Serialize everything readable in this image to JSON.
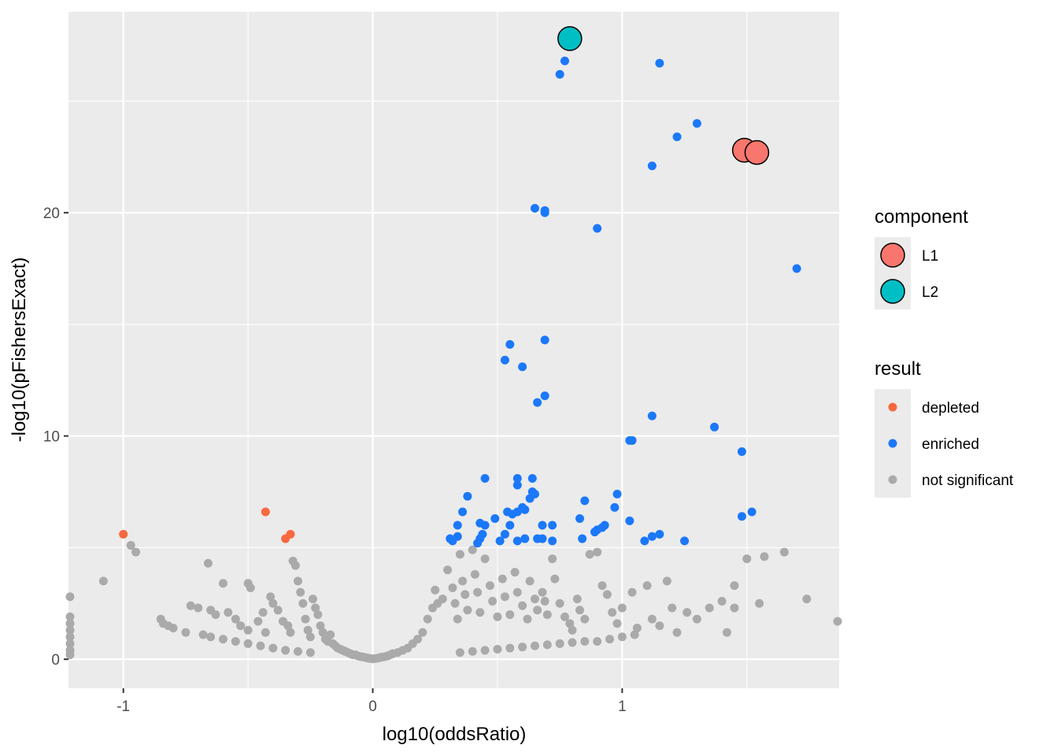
{
  "chart_data": {
    "type": "scatter",
    "xlabel": "log10(oddsRatio)",
    "ylabel": "-log10(pFishersExact)",
    "xlim": [
      -1.22,
      1.87
    ],
    "ylim": [
      -1.3,
      29.0
    ],
    "x_ticks": [
      -1,
      0,
      1
    ],
    "x_tick_labels": [
      "-1",
      "0",
      "1"
    ],
    "y_ticks": [
      0,
      10,
      20
    ],
    "y_tick_labels": [
      "0",
      "10",
      "20"
    ],
    "grid": true,
    "legend_position": "right",
    "colors": {
      "panel": "#ebebeb",
      "grid": "#ffffff",
      "depleted": "#f8683f",
      "enriched": "#1b78f9",
      "not_significant": "#aaaaaa",
      "L1": "#f8766d",
      "L2": "#00bfc4"
    },
    "legends": [
      {
        "title": "component",
        "entries": [
          {
            "label": "L1",
            "color": "#f8766d",
            "shape": "large-circle"
          },
          {
            "label": "L2",
            "color": "#00bfc4",
            "shape": "large-circle"
          }
        ]
      },
      {
        "title": "result",
        "entries": [
          {
            "label": "depleted",
            "color": "#f8683f",
            "shape": "small-circle"
          },
          {
            "label": "enriched",
            "color": "#1b78f9",
            "shape": "small-circle"
          },
          {
            "label": "not significant",
            "color": "#aaaaaa",
            "shape": "small-circle"
          }
        ]
      }
    ],
    "series": [
      {
        "name": "not significant",
        "color": "#aaaaaa",
        "points": [
          [
            -1.22,
            2.8
          ],
          [
            -1.22,
            1.9
          ],
          [
            -1.22,
            1.6
          ],
          [
            -1.22,
            1.3
          ],
          [
            -1.22,
            1.0
          ],
          [
            -1.22,
            0.7
          ],
          [
            -1.22,
            0.4
          ],
          [
            -1.22,
            0.2
          ],
          [
            -1.08,
            3.5
          ],
          [
            -0.97,
            5.1
          ],
          [
            -0.95,
            4.8
          ],
          [
            -0.85,
            1.8
          ],
          [
            -0.84,
            1.6
          ],
          [
            -0.82,
            1.5
          ],
          [
            -0.8,
            1.4
          ],
          [
            -0.75,
            1.2
          ],
          [
            -0.73,
            2.4
          ],
          [
            -0.7,
            2.3
          ],
          [
            -0.68,
            1.1
          ],
          [
            -0.66,
            4.3
          ],
          [
            -0.65,
            2.2
          ],
          [
            -0.63,
            2.0
          ],
          [
            -0.6,
            3.4
          ],
          [
            -0.58,
            2.1
          ],
          [
            -0.55,
            1.8
          ],
          [
            -0.53,
            1.5
          ],
          [
            -0.5,
            1.3
          ],
          [
            -0.5,
            3.4
          ],
          [
            -0.49,
            3.2
          ],
          [
            -0.46,
            1.7
          ],
          [
            -0.44,
            2.1
          ],
          [
            -0.43,
            1.2
          ],
          [
            -0.41,
            2.8
          ],
          [
            -0.4,
            2.5
          ],
          [
            -0.38,
            2.2
          ],
          [
            -0.36,
            1.7
          ],
          [
            -0.34,
            1.5
          ],
          [
            -0.33,
            1.2
          ],
          [
            -0.32,
            4.4
          ],
          [
            -0.31,
            4.2
          ],
          [
            -0.3,
            3.5
          ],
          [
            -0.29,
            3.0
          ],
          [
            -0.28,
            2.5
          ],
          [
            -0.27,
            1.8
          ],
          [
            -0.26,
            1.3
          ],
          [
            -0.25,
            1.0
          ],
          [
            -0.24,
            2.7
          ],
          [
            -0.23,
            2.3
          ],
          [
            -0.22,
            2.0
          ],
          [
            -0.21,
            1.5
          ],
          [
            -0.2,
            1.2
          ],
          [
            -0.19,
            0.9
          ],
          [
            -0.18,
            0.8
          ],
          [
            -0.17,
            1.1
          ],
          [
            -0.16,
            0.7
          ],
          [
            -0.15,
            0.6
          ],
          [
            -0.14,
            0.5
          ],
          [
            -0.13,
            0.45
          ],
          [
            -0.12,
            0.4
          ],
          [
            -0.11,
            0.35
          ],
          [
            -0.1,
            0.3
          ],
          [
            -0.09,
            0.25
          ],
          [
            -0.08,
            0.2
          ],
          [
            -0.07,
            0.2
          ],
          [
            -0.06,
            0.15
          ],
          [
            -0.05,
            0.12
          ],
          [
            -0.04,
            0.1
          ],
          [
            -0.03,
            0.08
          ],
          [
            -0.02,
            0.05
          ],
          [
            -0.01,
            0.03
          ],
          [
            0.0,
            0.02
          ],
          [
            0.01,
            0.03
          ],
          [
            0.02,
            0.05
          ],
          [
            0.03,
            0.08
          ],
          [
            0.04,
            0.1
          ],
          [
            0.05,
            0.12
          ],
          [
            0.06,
            0.15
          ],
          [
            0.07,
            0.2
          ],
          [
            0.08,
            0.25
          ],
          [
            0.1,
            0.3
          ],
          [
            0.12,
            0.4
          ],
          [
            0.14,
            0.5
          ],
          [
            0.16,
            0.7
          ],
          [
            0.18,
            0.9
          ],
          [
            0.2,
            1.2
          ],
          [
            0.22,
            1.8
          ],
          [
            0.24,
            2.3
          ],
          [
            0.25,
            3.1
          ],
          [
            0.26,
            2.5
          ],
          [
            0.28,
            2.7
          ],
          [
            0.3,
            4.0
          ],
          [
            0.32,
            3.2
          ],
          [
            0.33,
            2.5
          ],
          [
            0.34,
            1.8
          ],
          [
            0.35,
            4.7
          ],
          [
            0.36,
            3.5
          ],
          [
            0.37,
            2.9
          ],
          [
            0.38,
            2.2
          ],
          [
            0.4,
            4.9
          ],
          [
            0.41,
            3.8
          ],
          [
            0.42,
            3.0
          ],
          [
            0.43,
            2.1
          ],
          [
            0.45,
            4.5
          ],
          [
            0.47,
            3.3
          ],
          [
            0.48,
            2.6
          ],
          [
            0.5,
            1.9
          ],
          [
            0.52,
            3.6
          ],
          [
            0.53,
            2.8
          ],
          [
            0.55,
            2.0
          ],
          [
            0.57,
            3.9
          ],
          [
            0.58,
            3.0
          ],
          [
            0.6,
            2.4
          ],
          [
            0.62,
            1.8
          ],
          [
            0.63,
            3.5
          ],
          [
            0.65,
            2.7
          ],
          [
            0.66,
            2.2
          ],
          [
            0.68,
            3.0
          ],
          [
            0.69,
            2.6
          ],
          [
            0.7,
            2.0
          ],
          [
            0.72,
            4.5
          ],
          [
            0.73,
            3.6
          ],
          [
            0.75,
            2.5
          ],
          [
            0.77,
            1.9
          ],
          [
            0.79,
            1.6
          ],
          [
            0.8,
            1.3
          ],
          [
            0.82,
            2.7
          ],
          [
            0.83,
            2.2
          ],
          [
            0.85,
            1.8
          ],
          [
            0.87,
            4.7
          ],
          [
            0.9,
            4.8
          ],
          [
            0.92,
            3.3
          ],
          [
            0.94,
            2.9
          ],
          [
            0.96,
            2.1
          ],
          [
            0.98,
            1.6
          ],
          [
            1.0,
            2.3
          ],
          [
            1.04,
            3.0
          ],
          [
            1.06,
            1.4
          ],
          [
            1.1,
            3.3
          ],
          [
            1.12,
            1.8
          ],
          [
            1.15,
            1.5
          ],
          [
            1.18,
            3.5
          ],
          [
            1.2,
            2.3
          ],
          [
            1.22,
            1.2
          ],
          [
            1.26,
            2.1
          ],
          [
            1.3,
            1.8
          ],
          [
            1.35,
            2.3
          ],
          [
            1.4,
            2.6
          ],
          [
            1.42,
            1.2
          ],
          [
            1.45,
            3.3
          ],
          [
            1.45,
            2.3
          ],
          [
            1.5,
            4.5
          ],
          [
            1.55,
            2.5
          ],
          [
            1.57,
            4.6
          ],
          [
            1.65,
            4.8
          ],
          [
            1.74,
            2.7
          ],
          [
            1.87,
            1.7
          ],
          [
            0.9,
            0.8
          ],
          [
            0.85,
            0.8
          ],
          [
            0.8,
            0.75
          ],
          [
            0.75,
            0.7
          ],
          [
            0.7,
            0.65
          ],
          [
            0.65,
            0.6
          ],
          [
            0.6,
            0.55
          ],
          [
            0.55,
            0.5
          ],
          [
            0.5,
            0.45
          ],
          [
            0.45,
            0.4
          ],
          [
            0.4,
            0.35
          ],
          [
            0.35,
            0.3
          ],
          [
            0.95,
            0.9
          ],
          [
            1.0,
            1.0
          ],
          [
            1.05,
            1.1
          ],
          [
            -0.35,
            0.4
          ],
          [
            -0.3,
            0.35
          ],
          [
            -0.25,
            0.3
          ],
          [
            -0.4,
            0.5
          ],
          [
            -0.45,
            0.6
          ],
          [
            -0.5,
            0.7
          ],
          [
            -0.55,
            0.8
          ],
          [
            -0.6,
            0.9
          ],
          [
            -0.65,
            1.0
          ]
        ]
      },
      {
        "name": "depleted",
        "color": "#f8683f",
        "points": [
          [
            -1.0,
            5.6
          ],
          [
            -0.43,
            6.6
          ],
          [
            -0.35,
            5.4
          ],
          [
            -0.33,
            5.6
          ]
        ]
      },
      {
        "name": "enriched",
        "color": "#1b78f9",
        "points": [
          [
            0.77,
            26.8
          ],
          [
            0.75,
            26.2
          ],
          [
            1.15,
            26.7
          ],
          [
            1.3,
            24.0
          ],
          [
            1.22,
            23.4
          ],
          [
            1.12,
            22.1
          ],
          [
            0.65,
            20.2
          ],
          [
            0.69,
            20.1
          ],
          [
            0.69,
            20.0
          ],
          [
            0.9,
            19.3
          ],
          [
            1.7,
            17.5
          ],
          [
            0.69,
            14.3
          ],
          [
            0.55,
            14.1
          ],
          [
            0.53,
            13.4
          ],
          [
            0.6,
            13.1
          ],
          [
            0.69,
            11.8
          ],
          [
            0.66,
            11.5
          ],
          [
            1.12,
            10.9
          ],
          [
            1.37,
            10.4
          ],
          [
            1.03,
            9.8
          ],
          [
            1.04,
            9.8
          ],
          [
            1.48,
            9.3
          ],
          [
            0.45,
            8.1
          ],
          [
            0.58,
            8.1
          ],
          [
            0.64,
            8.1
          ],
          [
            0.58,
            7.8
          ],
          [
            0.64,
            7.5
          ],
          [
            0.65,
            7.4
          ],
          [
            0.63,
            7.2
          ],
          [
            0.98,
            7.4
          ],
          [
            0.38,
            7.3
          ],
          [
            0.85,
            7.1
          ],
          [
            0.6,
            6.8
          ],
          [
            0.61,
            6.7
          ],
          [
            0.56,
            6.5
          ],
          [
            0.54,
            6.6
          ],
          [
            0.58,
            6.6
          ],
          [
            0.36,
            6.6
          ],
          [
            0.83,
            6.3
          ],
          [
            0.49,
            6.3
          ],
          [
            0.55,
            6.0
          ],
          [
            0.34,
            6.0
          ],
          [
            0.43,
            6.1
          ],
          [
            0.45,
            6.0
          ],
          [
            0.68,
            6.0
          ],
          [
            0.72,
            6.0
          ],
          [
            0.93,
            6.0
          ],
          [
            0.92,
            5.9
          ],
          [
            0.9,
            5.8
          ],
          [
            0.89,
            5.7
          ],
          [
            0.97,
            6.8
          ],
          [
            1.03,
            6.2
          ],
          [
            1.15,
            5.6
          ],
          [
            1.12,
            5.5
          ],
          [
            1.09,
            5.3
          ],
          [
            1.48,
            6.4
          ],
          [
            1.52,
            6.6
          ],
          [
            0.51,
            5.3
          ],
          [
            0.58,
            5.3
          ],
          [
            0.72,
            5.3
          ],
          [
            0.31,
            5.4
          ],
          [
            0.34,
            5.5
          ],
          [
            0.43,
            5.4
          ],
          [
            0.44,
            5.6
          ],
          [
            0.53,
            5.6
          ],
          [
            0.61,
            5.4
          ],
          [
            0.66,
            5.4
          ],
          [
            0.68,
            5.4
          ],
          [
            0.84,
            5.4
          ],
          [
            1.25,
            5.3
          ],
          [
            0.32,
            5.3
          ],
          [
            0.42,
            5.2
          ]
        ]
      },
      {
        "name": "L1",
        "color": "#f8766d",
        "points": [
          [
            1.49,
            22.8
          ],
          [
            1.54,
            22.7
          ]
        ]
      },
      {
        "name": "L2",
        "color": "#00bfc4",
        "points": [
          [
            0.79,
            27.8
          ]
        ]
      }
    ]
  }
}
